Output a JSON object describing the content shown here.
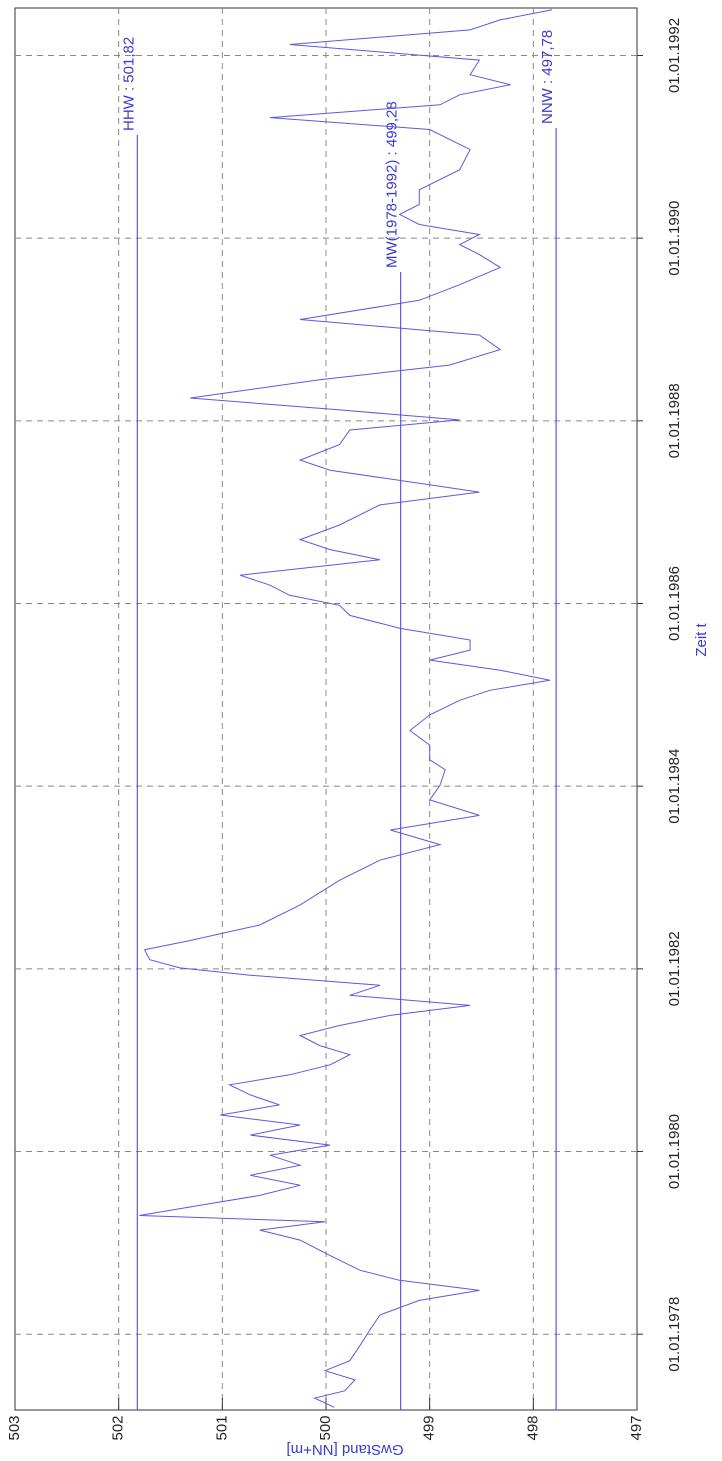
{
  "chart_data": {
    "type": "line",
    "xlabel": "Zeit t",
    "ylabel": "GwStand [NN+m]",
    "color": "#5a5ae0",
    "grid": true,
    "xlim": [
      1977.17,
      1992.52
    ],
    "ylim": [
      497,
      503
    ],
    "yticks": [
      497,
      498,
      499,
      500,
      501,
      502,
      503
    ],
    "xticks": [
      {
        "value": 1978,
        "label": "01.01.1978"
      },
      {
        "value": 1980,
        "label": "01.01.1980"
      },
      {
        "value": 1982,
        "label": "01.01.1982"
      },
      {
        "value": 1984,
        "label": "01.01.1984"
      },
      {
        "value": 1986,
        "label": "01.01.1986"
      },
      {
        "value": 1988,
        "label": "01.01.1988"
      },
      {
        "value": 1990,
        "label": "01.01.1990"
      },
      {
        "value": 1992,
        "label": "01.01.1992"
      }
    ],
    "reference_lines": [
      {
        "label": "HHW : 501,82",
        "value": 501.82
      },
      {
        "label": "MW(1978-1992) : 499,28",
        "value": 499.28
      },
      {
        "label": "NNW : 497,78",
        "value": 497.78
      }
    ],
    "x": [
      1977.2,
      1977.3,
      1977.38,
      1977.5,
      1977.6,
      1977.71,
      1977.88,
      1978.04,
      1978.21,
      1978.37,
      1978.48,
      1978.59,
      1978.7,
      1978.86,
      1979.03,
      1979.14,
      1979.23,
      1979.3,
      1979.41,
      1979.52,
      1979.63,
      1979.74,
      1979.85,
      1979.96,
      1980.07,
      1980.18,
      1980.29,
      1980.4,
      1980.51,
      1980.62,
      1980.73,
      1980.84,
      1980.95,
      1981.06,
      1981.16,
      1981.27,
      1981.38,
      1981.49,
      1981.6,
      1981.71,
      1981.82,
      1981.93,
      1982.01,
      1982.1,
      1982.21,
      1982.31,
      1982.48,
      1982.7,
      1982.97,
      1983.19,
      1983.36,
      1983.52,
      1983.68,
      1983.85,
      1984.01,
      1984.18,
      1984.29,
      1984.45,
      1984.61,
      1984.78,
      1984.94,
      1985.05,
      1985.16,
      1985.27,
      1985.38,
      1985.49,
      1985.6,
      1985.73,
      1985.87,
      1985.98,
      1986.09,
      1986.2,
      1986.31,
      1986.48,
      1986.59,
      1986.7,
      1986.86,
      1987.08,
      1987.22,
      1987.46,
      1987.57,
      1987.74,
      1987.9,
      1988.01,
      1988.12,
      1988.25,
      1988.45,
      1988.61,
      1988.78,
      1988.94,
      1989.11,
      1989.32,
      1989.49,
      1989.68,
      1989.82,
      1989.93,
      1990.04,
      1990.15,
      1990.26,
      1990.37,
      1990.53,
      1990.75,
      1990.97,
      1991.19,
      1991.32,
      1991.46,
      1991.57,
      1991.68,
      1991.79,
      1991.95,
      1992.12,
      1992.28,
      1992.39,
      1992.5
    ],
    "values": [
      499.92,
      500.11,
      499.82,
      499.72,
      500.01,
      499.77,
      499.67,
      499.58,
      499.48,
      499.1,
      498.52,
      499.29,
      499.67,
      499.96,
      500.25,
      500.64,
      500.01,
      501.8,
      501.22,
      500.64,
      500.25,
      500.73,
      500.25,
      500.54,
      499.96,
      500.73,
      500.25,
      501.02,
      500.45,
      500.73,
      500.93,
      500.35,
      499.96,
      499.77,
      500.06,
      500.25,
      499.87,
      499.38,
      498.61,
      499.77,
      499.48,
      500.73,
      501.41,
      501.7,
      501.75,
      501.31,
      500.64,
      500.25,
      499.87,
      499.48,
      498.9,
      499.38,
      498.52,
      499.0,
      498.9,
      498.85,
      499.0,
      499.0,
      499.19,
      499.0,
      498.71,
      498.42,
      497.84,
      498.32,
      499.0,
      498.61,
      498.61,
      499.29,
      499.77,
      499.87,
      500.35,
      500.54,
      500.83,
      499.48,
      499.96,
      500.25,
      499.87,
      499.48,
      498.52,
      499.96,
      500.25,
      499.87,
      499.77,
      498.71,
      499.87,
      501.31,
      500.06,
      498.81,
      498.32,
      498.52,
      500.25,
      499.1,
      498.71,
      498.32,
      498.52,
      498.71,
      498.52,
      499.1,
      499.29,
      499.1,
      499.1,
      498.71,
      498.61,
      499.0,
      500.54,
      498.9,
      498.71,
      498.22,
      498.61,
      498.52,
      500.35,
      498.61,
      498.32,
      497.82
    ]
  }
}
